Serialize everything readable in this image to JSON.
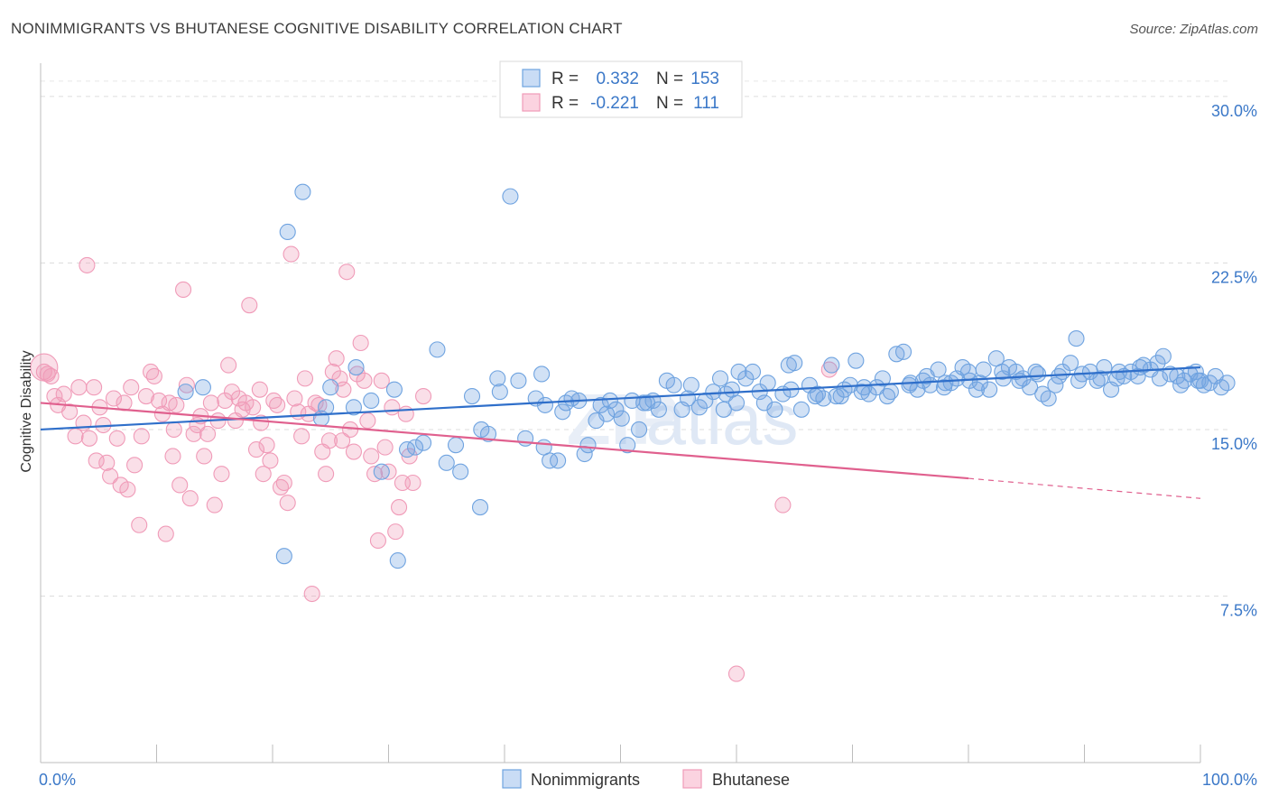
{
  "title": "NONIMMIGRANTS VS BHUTANESE COGNITIVE DISABILITY CORRELATION CHART",
  "source": "Source: ZipAtlas.com",
  "colors": {
    "blue": "#6fa3e0",
    "blue_line": "#2f6fca",
    "pink": "#f09bb8",
    "pink_line": "#e0608e",
    "tick_text": "#3b78c8"
  },
  "chart_data": {
    "type": "scatter",
    "title": "NONIMMIGRANTS VS BHUTANESE COGNITIVE DISABILITY CORRELATION CHART",
    "xlabel": "",
    "ylabel": "Cognitive Disability",
    "xlim": [
      0,
      100
    ],
    "ylim": [
      0,
      31.5
    ],
    "x_ticks": [
      "0.0%",
      "100.0%"
    ],
    "y_ticks": [
      {
        "value": 7.5,
        "label": "7.5%"
      },
      {
        "value": 15.0,
        "label": "15.0%"
      },
      {
        "value": 22.5,
        "label": "22.5%"
      },
      {
        "value": 30.0,
        "label": "30.0%"
      }
    ],
    "grid": "horizontal dashed",
    "legend_position": "top-center",
    "series": [
      {
        "name": "Nonimmigrants",
        "color": "#6fa3e0",
        "R": "0.332",
        "N": "153",
        "trend": {
          "x": [
            0,
            100
          ],
          "y": [
            15.0,
            17.8
          ]
        },
        "points": [
          [
            12.5,
            16.7
          ],
          [
            14.0,
            16.9
          ],
          [
            21.3,
            23.9
          ],
          [
            22.6,
            25.7
          ],
          [
            21.0,
            9.3
          ],
          [
            24.2,
            15.5
          ],
          [
            24.6,
            16.0
          ],
          [
            25.0,
            16.9
          ],
          [
            27.0,
            16.0
          ],
          [
            27.2,
            17.8
          ],
          [
            28.5,
            16.3
          ],
          [
            29.4,
            13.1
          ],
          [
            30.5,
            16.8
          ],
          [
            30.8,
            9.1
          ],
          [
            31.6,
            14.1
          ],
          [
            32.3,
            14.2
          ],
          [
            33.0,
            14.4
          ],
          [
            34.2,
            18.6
          ],
          [
            35.0,
            13.5
          ],
          [
            35.8,
            14.3
          ],
          [
            36.2,
            13.1
          ],
          [
            37.2,
            16.5
          ],
          [
            37.9,
            11.5
          ],
          [
            38.0,
            15.0
          ],
          [
            38.6,
            14.8
          ],
          [
            39.4,
            17.3
          ],
          [
            39.6,
            16.7
          ],
          [
            40.5,
            25.5
          ],
          [
            41.2,
            17.2
          ],
          [
            41.8,
            14.6
          ],
          [
            42.7,
            16.4
          ],
          [
            43.2,
            17.5
          ],
          [
            43.4,
            14.2
          ],
          [
            43.9,
            13.6
          ],
          [
            44.6,
            13.6
          ],
          [
            45.3,
            16.2
          ],
          [
            45.8,
            16.4
          ],
          [
            46.4,
            16.3
          ],
          [
            46.9,
            13.9
          ],
          [
            47.2,
            14.3
          ],
          [
            47.9,
            15.4
          ],
          [
            48.3,
            16.1
          ],
          [
            48.8,
            15.7
          ],
          [
            49.1,
            16.3
          ],
          [
            49.6,
            15.9
          ],
          [
            50.1,
            15.5
          ],
          [
            50.6,
            14.3
          ],
          [
            51.0,
            16.3
          ],
          [
            51.6,
            15.0
          ],
          [
            52.0,
            16.2
          ],
          [
            52.8,
            16.3
          ],
          [
            53.3,
            15.9
          ],
          [
            54.0,
            17.2
          ],
          [
            54.6,
            17.0
          ],
          [
            55.3,
            15.9
          ],
          [
            56.1,
            17.0
          ],
          [
            56.8,
            16.0
          ],
          [
            57.3,
            16.3
          ],
          [
            58.0,
            16.7
          ],
          [
            58.6,
            17.3
          ],
          [
            59.1,
            16.6
          ],
          [
            59.6,
            16.8
          ],
          [
            60.2,
            17.6
          ],
          [
            60.8,
            17.3
          ],
          [
            61.4,
            17.6
          ],
          [
            62.0,
            16.7
          ],
          [
            62.7,
            17.1
          ],
          [
            63.3,
            15.9
          ],
          [
            64.0,
            16.6
          ],
          [
            64.5,
            17.9
          ],
          [
            65.0,
            18.0
          ],
          [
            65.6,
            15.9
          ],
          [
            66.3,
            17.0
          ],
          [
            66.8,
            16.5
          ],
          [
            67.5,
            16.4
          ],
          [
            68.2,
            17.9
          ],
          [
            68.6,
            16.5
          ],
          [
            69.3,
            16.8
          ],
          [
            69.8,
            17.0
          ],
          [
            70.3,
            18.1
          ],
          [
            70.8,
            16.7
          ],
          [
            71.4,
            16.6
          ],
          [
            72.1,
            16.9
          ],
          [
            72.6,
            17.3
          ],
          [
            73.3,
            16.7
          ],
          [
            73.8,
            18.4
          ],
          [
            74.4,
            18.5
          ],
          [
            75.0,
            17.1
          ],
          [
            75.6,
            16.8
          ],
          [
            76.1,
            17.2
          ],
          [
            76.7,
            17.0
          ],
          [
            77.4,
            17.7
          ],
          [
            77.9,
            16.9
          ],
          [
            78.5,
            17.1
          ],
          [
            79.0,
            17.3
          ],
          [
            79.5,
            17.8
          ],
          [
            80.1,
            17.2
          ],
          [
            80.7,
            16.8
          ],
          [
            81.3,
            17.7
          ],
          [
            81.8,
            16.8
          ],
          [
            82.4,
            18.2
          ],
          [
            82.9,
            17.6
          ],
          [
            83.5,
            17.8
          ],
          [
            84.1,
            17.6
          ],
          [
            84.7,
            17.3
          ],
          [
            85.3,
            16.9
          ],
          [
            85.8,
            17.6
          ],
          [
            86.4,
            16.6
          ],
          [
            86.9,
            16.4
          ],
          [
            87.5,
            17.0
          ],
          [
            88.1,
            17.6
          ],
          [
            88.8,
            18.0
          ],
          [
            89.3,
            19.1
          ],
          [
            89.8,
            17.5
          ],
          [
            90.5,
            17.6
          ],
          [
            91.1,
            17.2
          ],
          [
            91.7,
            17.8
          ],
          [
            92.3,
            16.8
          ],
          [
            92.8,
            17.3
          ],
          [
            93.4,
            17.4
          ],
          [
            94.0,
            17.6
          ],
          [
            94.6,
            17.4
          ],
          [
            95.1,
            17.9
          ],
          [
            95.7,
            17.7
          ],
          [
            96.3,
            18.0
          ],
          [
            96.8,
            18.3
          ],
          [
            97.4,
            17.5
          ],
          [
            98.0,
            17.4
          ],
          [
            98.6,
            17.2
          ],
          [
            99.1,
            17.5
          ],
          [
            99.6,
            17.6
          ],
          [
            100.0,
            17.2
          ],
          [
            100.3,
            17.0
          ],
          [
            100.8,
            17.1
          ],
          [
            101.3,
            17.4
          ],
          [
            101.8,
            16.9
          ],
          [
            102.3,
            17.1
          ],
          [
            43.5,
            16.1
          ],
          [
            45.0,
            15.8
          ],
          [
            52.3,
            16.2
          ],
          [
            55.8,
            16.4
          ],
          [
            58.9,
            15.9
          ],
          [
            60.0,
            16.2
          ],
          [
            62.4,
            16.2
          ],
          [
            64.7,
            16.8
          ],
          [
            67.0,
            16.6
          ],
          [
            69.0,
            16.5
          ],
          [
            71.0,
            16.9
          ],
          [
            73.0,
            16.5
          ],
          [
            74.9,
            17.0
          ],
          [
            76.4,
            17.4
          ],
          [
            78.0,
            17.1
          ],
          [
            80.0,
            17.6
          ],
          [
            81.0,
            17.1
          ],
          [
            83.0,
            17.3
          ],
          [
            84.4,
            17.2
          ],
          [
            86.0,
            17.5
          ],
          [
            87.8,
            17.4
          ],
          [
            89.5,
            17.2
          ],
          [
            91.4,
            17.3
          ],
          [
            93.0,
            17.6
          ],
          [
            94.8,
            17.8
          ],
          [
            96.5,
            17.3
          ],
          [
            98.3,
            17.0
          ],
          [
            99.8,
            17.2
          ]
        ]
      },
      {
        "name": "Bhutanese",
        "color": "#f09bb8",
        "R": "-0.221",
        "N": "111",
        "trend": {
          "x": [
            0,
            80
          ],
          "y": [
            16.2,
            12.8
          ]
        },
        "trend_dashed": {
          "x": [
            80,
            100
          ],
          "y": [
            12.8,
            11.9
          ]
        },
        "points": [
          [
            0.3,
            17.6
          ],
          [
            0.6,
            17.5
          ],
          [
            0.9,
            17.4
          ],
          [
            1.2,
            16.5
          ],
          [
            1.5,
            16.1
          ],
          [
            2.0,
            16.6
          ],
          [
            2.5,
            15.8
          ],
          [
            3.0,
            14.7
          ],
          [
            3.3,
            16.9
          ],
          [
            3.7,
            15.3
          ],
          [
            4.0,
            22.4
          ],
          [
            4.2,
            14.6
          ],
          [
            4.6,
            16.9
          ],
          [
            4.8,
            13.6
          ],
          [
            5.1,
            16.0
          ],
          [
            5.4,
            15.2
          ],
          [
            5.7,
            13.5
          ],
          [
            6.0,
            12.9
          ],
          [
            6.3,
            16.4
          ],
          [
            6.6,
            14.6
          ],
          [
            6.9,
            12.5
          ],
          [
            7.2,
            16.2
          ],
          [
            7.5,
            12.3
          ],
          [
            7.8,
            16.9
          ],
          [
            8.1,
            13.4
          ],
          [
            8.5,
            10.7
          ],
          [
            8.7,
            14.7
          ],
          [
            9.1,
            16.5
          ],
          [
            9.5,
            17.6
          ],
          [
            9.8,
            17.4
          ],
          [
            10.2,
            16.3
          ],
          [
            10.5,
            15.7
          ],
          [
            10.8,
            10.3
          ],
          [
            11.1,
            16.2
          ],
          [
            11.4,
            13.8
          ],
          [
            11.7,
            16.1
          ],
          [
            12.0,
            12.5
          ],
          [
            12.3,
            21.3
          ],
          [
            12.6,
            17.0
          ],
          [
            12.9,
            11.9
          ],
          [
            13.2,
            14.8
          ],
          [
            13.5,
            15.2
          ],
          [
            13.8,
            15.6
          ],
          [
            14.1,
            13.8
          ],
          [
            14.4,
            14.8
          ],
          [
            14.7,
            16.2
          ],
          [
            15.0,
            11.6
          ],
          [
            15.3,
            15.4
          ],
          [
            15.6,
            13.0
          ],
          [
            15.9,
            16.3
          ],
          [
            16.2,
            17.9
          ],
          [
            16.5,
            16.7
          ],
          [
            16.8,
            15.4
          ],
          [
            17.1,
            16.4
          ],
          [
            17.4,
            15.9
          ],
          [
            17.7,
            16.2
          ],
          [
            18.0,
            20.6
          ],
          [
            18.3,
            16.0
          ],
          [
            18.6,
            14.1
          ],
          [
            18.9,
            16.8
          ],
          [
            19.2,
            13.0
          ],
          [
            19.5,
            14.3
          ],
          [
            19.8,
            13.6
          ],
          [
            20.1,
            16.3
          ],
          [
            20.4,
            16.1
          ],
          [
            20.7,
            12.4
          ],
          [
            21.0,
            12.6
          ],
          [
            21.3,
            11.7
          ],
          [
            21.6,
            22.9
          ],
          [
            21.9,
            16.4
          ],
          [
            22.2,
            15.8
          ],
          [
            22.5,
            14.7
          ],
          [
            22.8,
            17.3
          ],
          [
            23.1,
            15.7
          ],
          [
            23.4,
            7.6
          ],
          [
            23.7,
            16.2
          ],
          [
            24.0,
            16.1
          ],
          [
            24.3,
            14.0
          ],
          [
            24.6,
            13.0
          ],
          [
            24.9,
            14.5
          ],
          [
            25.2,
            17.6
          ],
          [
            25.5,
            18.2
          ],
          [
            25.8,
            17.3
          ],
          [
            26.1,
            16.8
          ],
          [
            26.4,
            22.1
          ],
          [
            26.7,
            15.0
          ],
          [
            27.0,
            14.0
          ],
          [
            27.3,
            17.5
          ],
          [
            27.6,
            18.9
          ],
          [
            27.9,
            17.2
          ],
          [
            28.2,
            15.4
          ],
          [
            28.5,
            13.8
          ],
          [
            28.8,
            13.0
          ],
          [
            29.1,
            10.0
          ],
          [
            29.4,
            17.2
          ],
          [
            29.7,
            14.2
          ],
          [
            30.0,
            13.1
          ],
          [
            30.3,
            16.0
          ],
          [
            30.6,
            10.4
          ],
          [
            30.9,
            11.5
          ],
          [
            31.2,
            12.6
          ],
          [
            31.5,
            15.7
          ],
          [
            31.8,
            13.8
          ],
          [
            32.1,
            12.6
          ],
          [
            60.0,
            4.0
          ],
          [
            64.0,
            11.6
          ],
          [
            68.0,
            17.7
          ],
          [
            33.0,
            16.5
          ],
          [
            26.0,
            14.5
          ],
          [
            19.0,
            15.3
          ],
          [
            11.5,
            15.0
          ]
        ]
      }
    ]
  },
  "legend": {
    "rows": [
      {
        "r_label": "R =",
        "r_value": "0.332",
        "n_label": "N =",
        "n_value": "153"
      },
      {
        "r_label": "R =",
        "r_value": "-0.221",
        "n_label": "N =",
        "n_value": "111"
      }
    ]
  },
  "bottom_legend": [
    "Nonimmigrants",
    "Bhutanese"
  ],
  "watermark": "ZIPatlas"
}
